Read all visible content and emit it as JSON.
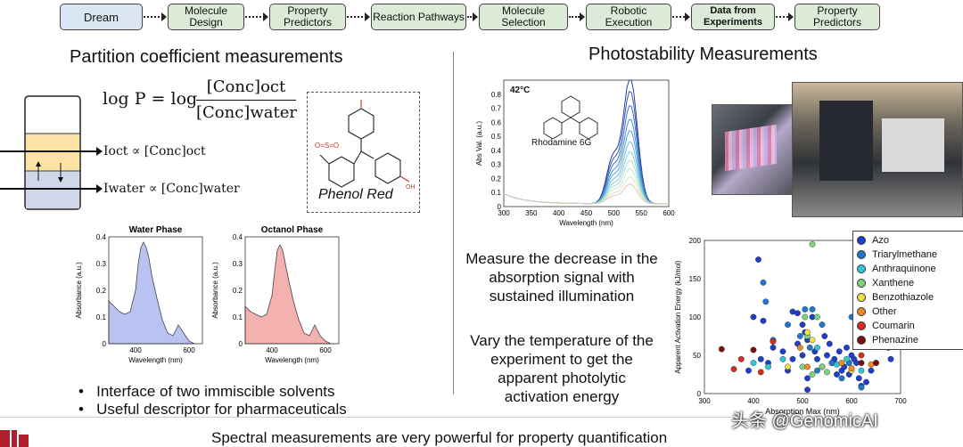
{
  "pipeline": [
    {
      "label": "Dream"
    },
    {
      "label": "Molecule Design"
    },
    {
      "label": "Property Predictors"
    },
    {
      "label": "Reaction Pathways"
    },
    {
      "label": "Molecule Selection"
    },
    {
      "label": "Robotic Execution"
    },
    {
      "label": "Data from Experiments"
    },
    {
      "label": "Property Predictors"
    }
  ],
  "left": {
    "title": "Partition coefficient measurements",
    "eq_lhs": "log P = log",
    "eq_num": "[Conc]oct",
    "eq_den": "[Conc]water",
    "i_oct": "Ioct ∝ [Conc]oct",
    "i_water": "Iwater ∝ [Conc]water",
    "phenol_label": "Phenol Red",
    "bullets": [
      "Interface of two immiscible solvents",
      "Useful descriptor for pharmaceuticals"
    ]
  },
  "right": {
    "title": "Photostability Measurements",
    "text1": "Measure the decrease in the absorption signal with sustained illumination",
    "text2": "Vary the temperature of the experiment to get the apparent photolytic activation energy",
    "rhodamine_temp": "42°C",
    "rhodamine_label": "Rhodamine 6G"
  },
  "footer": "Spectral measurements are very powerful for property quantification",
  "watermark": "头条 @GenomicAI",
  "chart_data": [
    {
      "type": "area",
      "title": "Water Phase",
      "xlabel": "Wavelength (nm)",
      "ylabel": "Absorbance (a.u.)",
      "x": [
        300,
        320,
        340,
        360,
        380,
        400,
        410,
        420,
        430,
        440,
        450,
        460,
        480,
        500,
        520,
        540,
        560,
        580,
        600,
        620
      ],
      "values": [
        0.16,
        0.14,
        0.12,
        0.11,
        0.12,
        0.2,
        0.3,
        0.36,
        0.38,
        0.36,
        0.32,
        0.26,
        0.17,
        0.09,
        0.04,
        0.03,
        0.07,
        0.04,
        0.01,
        0
      ],
      "xlim": [
        300,
        650
      ],
      "ylim": [
        0,
        0.4
      ],
      "xticks": [
        400,
        600
      ],
      "yticks": [
        0,
        0.1,
        0.2,
        0.3,
        0.4
      ],
      "color": "#b9c3f2"
    },
    {
      "type": "area",
      "title": "Octanol Phase",
      "xlabel": "Wavelength (nm)",
      "ylabel": "Absorbance (a.u.)",
      "x": [
        300,
        320,
        340,
        360,
        380,
        400,
        410,
        420,
        430,
        440,
        450,
        460,
        480,
        500,
        520,
        540,
        560,
        580,
        600,
        620
      ],
      "values": [
        0.14,
        0.12,
        0.11,
        0.1,
        0.11,
        0.18,
        0.27,
        0.35,
        0.37,
        0.35,
        0.3,
        0.25,
        0.16,
        0.09,
        0.04,
        0.03,
        0.07,
        0.03,
        0.01,
        0
      ],
      "xlim": [
        300,
        650
      ],
      "ylim": [
        0,
        0.4
      ],
      "xticks": [
        400,
        600
      ],
      "yticks": [
        0,
        0.1,
        0.2,
        0.3,
        0.4
      ],
      "color": "#f3b2b0"
    },
    {
      "type": "line",
      "xlabel": "Wavelength (nm)",
      "ylabel": "Abs Val. (a.u.)",
      "xlim": [
        300,
        600
      ],
      "ylim": [
        0,
        0.9
      ],
      "xticks": [
        300,
        350,
        400,
        450,
        500,
        550,
        600
      ],
      "yticks": [
        0,
        0.1,
        0.2,
        0.3,
        0.4,
        0.5,
        0.6,
        0.7,
        0.8
      ],
      "peak_nm": 530,
      "peak_heights": [
        0.9,
        0.8,
        0.7,
        0.6,
        0.52,
        0.44,
        0.37,
        0.31,
        0.25,
        0.19,
        0.14
      ],
      "colors": [
        "#2a3d9e",
        "#3558b5",
        "#3f73c4",
        "#4a8ed0",
        "#58a7d8",
        "#6bbfdf",
        "#84d0dc",
        "#a3ddd3",
        "#c7e6c4",
        "#e2e3b6",
        "#d8c8bb"
      ]
    },
    {
      "type": "scatter",
      "xlabel": "Absorption Max (nm)",
      "ylabel": "Apparent Activation Energy (kJ/mol)",
      "xlim": [
        300,
        700
      ],
      "ylim": [
        0,
        200
      ],
      "xticks": [
        300,
        400,
        500,
        600,
        700
      ],
      "yticks": [
        0,
        50,
        100,
        150,
        200
      ],
      "series": [
        {
          "name": "Azo",
          "color": "#1f3fc8",
          "points": [
            [
              410,
              175
            ],
            [
              400,
              100
            ],
            [
              420,
              95
            ],
            [
              430,
              40
            ],
            [
              440,
              60
            ],
            [
              480,
              107
            ],
            [
              490,
              105
            ],
            [
              500,
              90
            ],
            [
              505,
              80
            ],
            [
              510,
              70
            ],
            [
              520,
              100
            ],
            [
              525,
              55
            ],
            [
              530,
              45
            ],
            [
              540,
              35
            ],
            [
              550,
              50
            ],
            [
              560,
              40
            ],
            [
              570,
              25
            ],
            [
              580,
              30
            ],
            [
              590,
              60
            ],
            [
              600,
              50
            ],
            [
              610,
              40
            ],
            [
              615,
              20
            ],
            [
              620,
              10
            ],
            [
              630,
              15
            ],
            [
              460,
              55
            ],
            [
              470,
              30
            ],
            [
              480,
              45
            ],
            [
              490,
              65
            ],
            [
              500,
              50
            ],
            [
              510,
              20
            ],
            [
              545,
              75
            ],
            [
              555,
              65
            ],
            [
              565,
              45
            ],
            [
              575,
              55
            ],
            [
              585,
              35
            ],
            [
              595,
              25
            ],
            [
              605,
              45
            ],
            [
              640,
              30
            ],
            [
              680,
              45
            ],
            [
              510,
              5
            ],
            [
              390,
              30
            ],
            [
              415,
              45
            ]
          ]
        },
        {
          "name": "Triarylmethane",
          "color": "#1e78d0",
          "points": [
            [
              420,
              145
            ],
            [
              425,
              120
            ],
            [
              520,
              110
            ],
            [
              540,
              90
            ],
            [
              600,
              100
            ],
            [
              610,
              85
            ],
            [
              560,
              40
            ],
            [
              580,
              20
            ],
            [
              620,
              8
            ],
            [
              470,
              90
            ],
            [
              495,
              75
            ],
            [
              505,
              110
            ],
            [
              515,
              60
            ],
            [
              530,
              30
            ],
            [
              595,
              40
            ],
            [
              440,
              70
            ]
          ]
        },
        {
          "name": "Anthraquinone",
          "color": "#33c6d8",
          "points": [
            [
              400,
              40
            ],
            [
              430,
              35
            ],
            [
              460,
              45
            ],
            [
              530,
              60
            ],
            [
              570,
              38
            ],
            [
              590,
              45
            ],
            [
              620,
              30
            ]
          ]
        },
        {
          "name": "Xanthene",
          "color": "#7ed47d",
          "points": [
            [
              520,
              195
            ],
            [
              505,
              100
            ],
            [
              530,
              100
            ],
            [
              510,
              75
            ],
            [
              540,
              35
            ],
            [
              550,
              28
            ],
            [
              500,
              35
            ],
            [
              520,
              25
            ]
          ]
        },
        {
          "name": "Benzothiazole",
          "color": "#f2df4c",
          "points": [
            [
              510,
              80
            ],
            [
              520,
              70
            ],
            [
              470,
              35
            ],
            [
              600,
              30
            ]
          ]
        },
        {
          "name": "Other",
          "color": "#f18a22",
          "points": [
            [
              510,
              35
            ],
            [
              580,
              40
            ],
            [
              640,
              38
            ],
            [
              600,
              33
            ],
            [
              495,
              60
            ]
          ]
        },
        {
          "name": "Coumarin",
          "color": "#d42d1e",
          "points": [
            [
              360,
              32
            ],
            [
              375,
              45
            ],
            [
              440,
              68
            ],
            [
              620,
              50
            ],
            [
              650,
              40
            ],
            [
              415,
              28
            ]
          ]
        },
        {
          "name": "Phenazine",
          "color": "#7a1010",
          "points": [
            [
              335,
              58
            ],
            [
              400,
              57
            ],
            [
              650,
              40
            ],
            [
              675,
              60
            ],
            [
              620,
              40
            ]
          ]
        }
      ]
    }
  ]
}
